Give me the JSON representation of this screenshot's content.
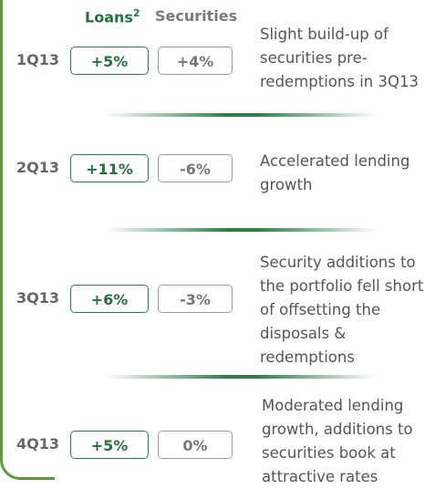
{
  "header": {
    "loans": "Loans",
    "loans_note": "2",
    "securities": "Securities"
  },
  "rows": [
    {
      "quarter": "1Q13",
      "loans": "+5%",
      "securities": "+4%",
      "comment": "Slight build-up of securities pre-redemptions in 3Q13"
    },
    {
      "quarter": "2Q13",
      "loans": "+11%",
      "securities": "-6%",
      "comment": "Accelerated lending growth"
    },
    {
      "quarter": "3Q13",
      "loans": "+6%",
      "securities": "-3%",
      "comment": "Security additions to the portfolio fell short of offsetting the disposals & redemptions"
    },
    {
      "quarter": "4Q13",
      "loans": "+5%",
      "securities": "0%",
      "comment": "Moderated lending growth, additions to securities book at attractive rates"
    }
  ]
}
